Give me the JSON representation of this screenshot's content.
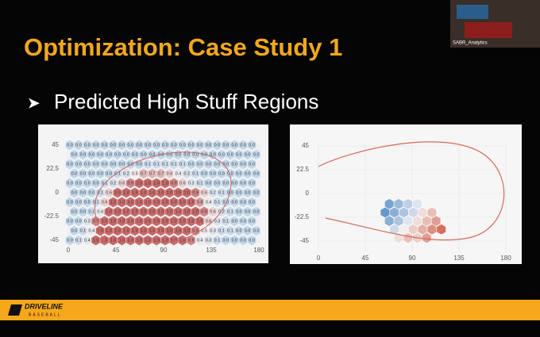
{
  "slide": {
    "title": "Optimization: Case Study 1",
    "bullet": "Predicted High Stuff Regions",
    "webcam_label": "SABR_Analytics",
    "footer": {
      "brand": "DRIVELINE",
      "sub": "BASEBALL"
    },
    "left_chart": {
      "xticks": [
        0,
        45,
        90,
        135,
        180
      ],
      "yticks": [
        45,
        22.5,
        0,
        -22.5,
        -45
      ],
      "rows": [
        [
          "0.0",
          "0.0",
          "0.0",
          "0.0",
          "0.0",
          "0.0",
          "0.0",
          "0.0",
          "0.0",
          "0.0",
          "0.0",
          "0.0",
          "0.0",
          "0.0",
          "0.0",
          "0.0",
          "0.0",
          "0.0",
          "0.0",
          "0.0",
          "0.0",
          "0.0"
        ],
        [
          "0.0",
          "0.0",
          "0.0",
          "0.0",
          "0.0",
          "0.0",
          "0.0",
          "0.0",
          "0.0",
          "0.0",
          "0.0",
          "0.0",
          "0.0",
          "0.0",
          "0.0",
          "0.0",
          "0.0",
          "0.0",
          "0.0",
          "0.0",
          "0.0",
          "0.0"
        ],
        [
          "0.0",
          "0.0",
          "0.0",
          "0.0",
          "0.0",
          "0.0",
          "0.0",
          "0.0",
          "0.0",
          "0.1",
          "0.1",
          "0.1",
          "0.1",
          "0.1",
          "0.0",
          "0.0",
          "0.0",
          "0.0",
          "0.0",
          "0.0",
          "0.0",
          "0.0"
        ],
        [
          "0.0",
          "0.0",
          "0.0",
          "0.0",
          "0.0",
          "0.1",
          "0.2",
          "0.5",
          "0.7",
          "0.7",
          "0.7",
          "0.6",
          "0.4",
          "0.2",
          "0.1",
          "0.0",
          "0.0",
          "0.0",
          "0.0",
          "0.0",
          "0.0",
          "0.0"
        ],
        [
          "0.0",
          "0.0",
          "0.0",
          "0.0",
          "0.1",
          "0.2",
          "0.6",
          "0.9",
          "1.0",
          "1.0",
          "1.0",
          "1.0",
          "0.9",
          "0.6",
          "0.3",
          "0.1",
          "0.0",
          "0.0",
          "0.0",
          "0.0",
          "0.0",
          "0.0"
        ],
        [
          "0.0",
          "0.0",
          "0.0",
          "0.1",
          "0.6",
          "1.0",
          "1.0",
          "1.0",
          "1.0",
          "1.0",
          "1.0",
          "1.0",
          "1.0",
          "1.0",
          "0.9",
          "0.6",
          "0.2",
          "0.1",
          "0.0",
          "0.0",
          "0.0",
          "0.0"
        ],
        [
          "0.0",
          "0.0",
          "0.0",
          "0.1",
          "0.6",
          "1.0",
          "1.0",
          "1.0",
          "1.0",
          "1.0",
          "1.0",
          "1.0",
          "1.0",
          "1.0",
          "1.0",
          "0.8",
          "0.4",
          "0.1",
          "0.0",
          "0.0",
          "0.0",
          "0.0"
        ],
        [
          "0.0",
          "0.0",
          "0.1",
          "0.4",
          "1.0",
          "1.0",
          "1.0",
          "1.0",
          "1.0",
          "1.0",
          "1.0",
          "1.0",
          "1.0",
          "1.0",
          "1.0",
          "0.9",
          "0.6",
          "0.2",
          "0.1",
          "0.0",
          "0.0",
          "0.0"
        ],
        [
          "0.0",
          "0.0",
          "0.3",
          "0.9",
          "1.0",
          "1.0",
          "1.0",
          "1.0",
          "1.0",
          "1.0",
          "1.0",
          "1.0",
          "1.0",
          "1.0",
          "1.0",
          "1.0",
          "0.6",
          "0.3",
          "0.1",
          "0.0",
          "0.0",
          "0.0"
        ],
        [
          "0.0",
          "0.1",
          "0.4",
          "1.0",
          "1.0",
          "1.0",
          "1.0",
          "1.0",
          "1.0",
          "1.0",
          "1.0",
          "1.0",
          "1.0",
          "1.0",
          "0.9",
          "0.5",
          "0.3",
          "0.1",
          "0.1",
          "0.0",
          "0.0",
          "0.0"
        ],
        [
          "0.0",
          "0.1",
          "0.4",
          "1.0",
          "1.0",
          "1.0",
          "1.0",
          "1.0",
          "1.0",
          "1.0",
          "1.0",
          "1.0",
          "1.0",
          "1.0",
          "0.9",
          "0.4",
          "0.3",
          "0.1",
          "0.0",
          "0.0",
          "0.0",
          "0.0"
        ]
      ]
    },
    "right_chart": {
      "xticks": [
        0,
        45,
        90,
        135,
        180
      ],
      "yticks": [
        45,
        22.5,
        0,
        -22.5,
        -45
      ],
      "cells": [
        {
          "x": 68,
          "y": -10,
          "value": -0.7
        },
        {
          "x": 77,
          "y": -10,
          "value": -0.5
        },
        {
          "x": 86,
          "y": -10,
          "value": -0.3
        },
        {
          "x": 95,
          "y": -10,
          "value": -0.1
        },
        {
          "x": 64,
          "y": -18,
          "value": -0.8
        },
        {
          "x": 73,
          "y": -18,
          "value": -0.6
        },
        {
          "x": 82,
          "y": -18,
          "value": -0.4
        },
        {
          "x": 91,
          "y": -18,
          "value": -0.2
        },
        {
          "x": 100,
          "y": -18,
          "value": 0.1
        },
        {
          "x": 109,
          "y": -18,
          "value": 0.3
        },
        {
          "x": 68,
          "y": -26,
          "value": -0.6
        },
        {
          "x": 77,
          "y": -26,
          "value": -0.4
        },
        {
          "x": 86,
          "y": -26,
          "value": -0.1
        },
        {
          "x": 95,
          "y": -26,
          "value": 0.1
        },
        {
          "x": 104,
          "y": -26,
          "value": 0.3
        },
        {
          "x": 113,
          "y": -26,
          "value": 0.5
        },
        {
          "x": 73,
          "y": -34,
          "value": -0.2
        },
        {
          "x": 82,
          "y": -34,
          "value": 0.0
        },
        {
          "x": 91,
          "y": -34,
          "value": 0.2
        },
        {
          "x": 100,
          "y": -34,
          "value": 0.4
        },
        {
          "x": 109,
          "y": -34,
          "value": 0.6
        },
        {
          "x": 118,
          "y": -34,
          "value": 0.8
        },
        {
          "x": 77,
          "y": -42,
          "value": 0.1
        },
        {
          "x": 86,
          "y": -42,
          "value": 0.3
        },
        {
          "x": 95,
          "y": -42,
          "value": 0.2
        },
        {
          "x": 104,
          "y": -42,
          "value": 0.5
        }
      ]
    }
  }
}
